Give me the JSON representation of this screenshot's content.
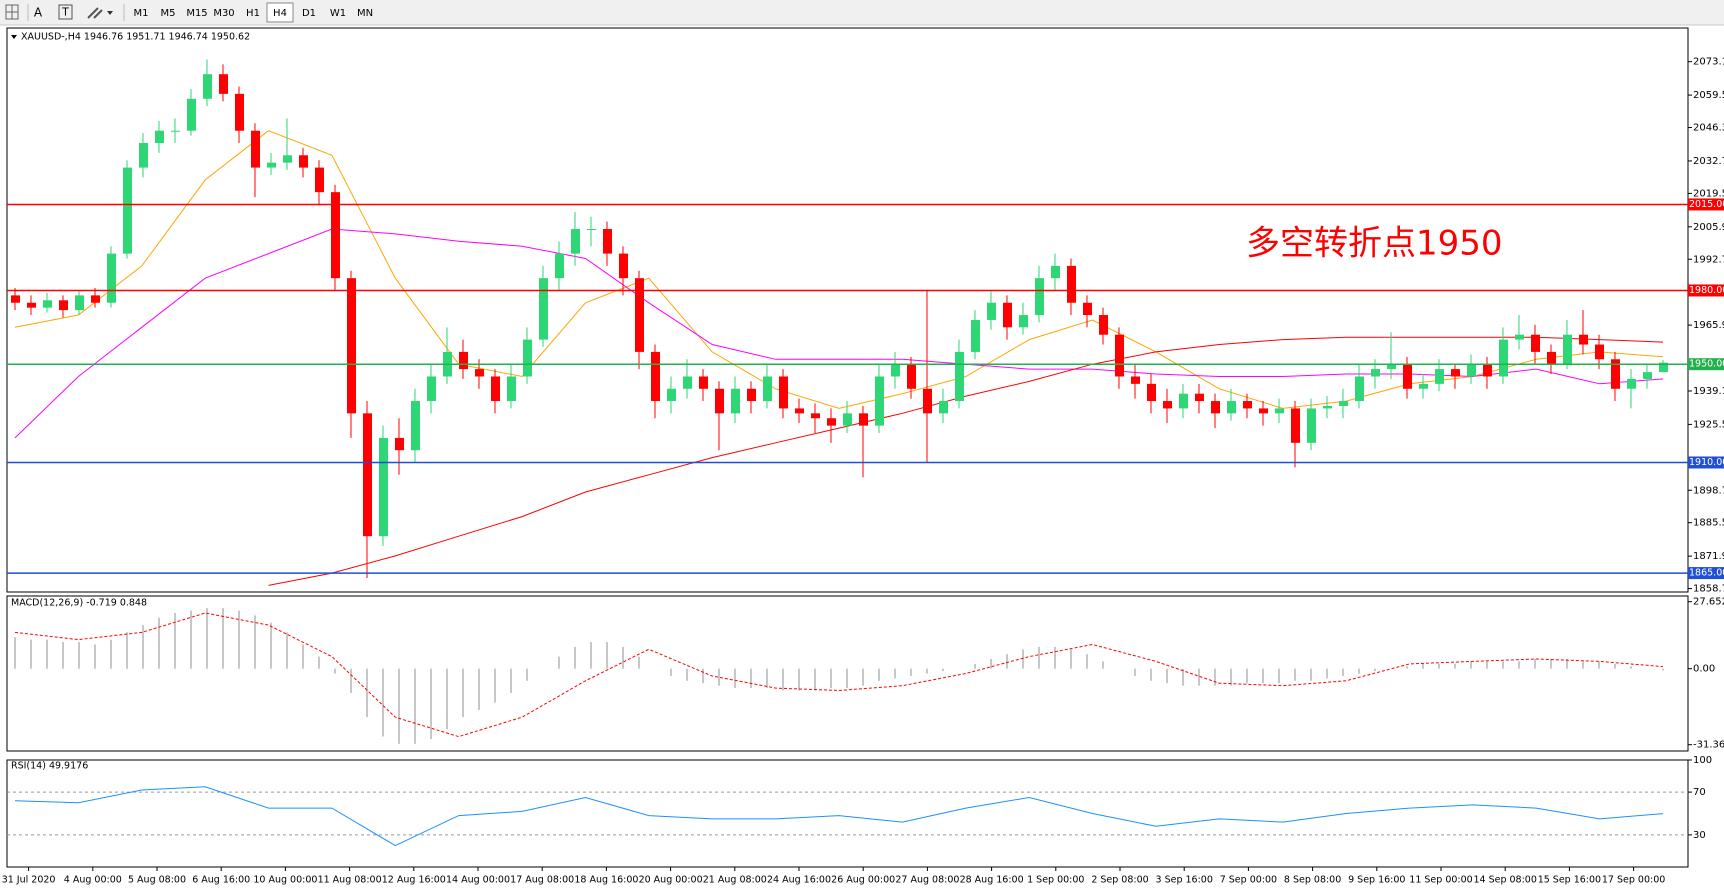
{
  "toolbar": {
    "tools": [
      "A",
      "T"
    ],
    "timeframes": [
      "M1",
      "M5",
      "M15",
      "M30",
      "H1",
      "H4",
      "D1",
      "W1",
      "MN"
    ],
    "active": 5
  },
  "chart_data": [
    {
      "type": "candlestick",
      "title": "XAUUSD-,H4  1946.76 1951.71 1946.74 1950.62",
      "up_color": "#2fd675",
      "down_color": "#ff0000",
      "ohlc": [
        [
          1978,
          1981,
          1972,
          1975
        ],
        [
          1975,
          1978,
          1970,
          1973
        ],
        [
          1973,
          1979,
          1971,
          1976
        ],
        [
          1976,
          1978,
          1969,
          1972
        ],
        [
          1972,
          1980,
          1970,
          1978
        ],
        [
          1978,
          1981,
          1973,
          1975
        ],
        [
          1975,
          1998,
          1973,
          1995
        ],
        [
          1995,
          2033,
          1993,
          2030
        ],
        [
          2030,
          2044,
          2026,
          2040
        ],
        [
          2040,
          2049,
          2036,
          2045
        ],
        [
          2045,
          2050,
          2040,
          2045
        ],
        [
          2045,
          2062,
          2043,
          2058
        ],
        [
          2058,
          2074,
          2055,
          2068
        ],
        [
          2068,
          2072,
          2057,
          2060
        ],
        [
          2060,
          2063,
          2040,
          2045
        ],
        [
          2045,
          2048,
          2018,
          2030
        ],
        [
          2030,
          2036,
          2027,
          2032
        ],
        [
          2032,
          2050,
          2029,
          2035
        ],
        [
          2035,
          2038,
          2026,
          2030
        ],
        [
          2030,
          2033,
          2015,
          2020
        ],
        [
          2020,
          2023,
          1980,
          1985
        ],
        [
          1985,
          1988,
          1920,
          1930
        ],
        [
          1930,
          1935,
          1863,
          1880
        ],
        [
          1880,
          1925,
          1876,
          1920
        ],
        [
          1920,
          1928,
          1905,
          1915
        ],
        [
          1915,
          1940,
          1910,
          1935
        ],
        [
          1935,
          1950,
          1930,
          1945
        ],
        [
          1945,
          1965,
          1942,
          1955
        ],
        [
          1955,
          1960,
          1944,
          1948
        ],
        [
          1948,
          1952,
          1940,
          1945
        ],
        [
          1945,
          1948,
          1930,
          1935
        ],
        [
          1935,
          1950,
          1932,
          1945
        ],
        [
          1945,
          1965,
          1942,
          1960
        ],
        [
          1960,
          1990,
          1957,
          1985
        ],
        [
          1985,
          2000,
          1980,
          1995
        ],
        [
          1995,
          2012,
          1990,
          2005
        ],
        [
          2005,
          2010,
          1998,
          2005
        ],
        [
          2005,
          2008,
          1990,
          1995
        ],
        [
          1995,
          1998,
          1978,
          1985
        ],
        [
          1985,
          1988,
          1948,
          1955
        ],
        [
          1955,
          1958,
          1928,
          1935
        ],
        [
          1935,
          1945,
          1930,
          1940
        ],
        [
          1940,
          1952,
          1936,
          1945
        ],
        [
          1945,
          1948,
          1935,
          1940
        ],
        [
          1940,
          1943,
          1915,
          1930
        ],
        [
          1930,
          1945,
          1926,
          1940
        ],
        [
          1940,
          1943,
          1930,
          1935
        ],
        [
          1935,
          1950,
          1932,
          1945
        ],
        [
          1945,
          1948,
          1928,
          1932
        ],
        [
          1932,
          1936,
          1926,
          1930
        ],
        [
          1930,
          1934,
          1922,
          1928
        ],
        [
          1928,
          1932,
          1918,
          1925
        ],
        [
          1925,
          1935,
          1922,
          1930
        ],
        [
          1930,
          1933,
          1904,
          1925
        ],
        [
          1925,
          1950,
          1922,
          1945
        ],
        [
          1945,
          1955,
          1940,
          1950
        ],
        [
          1950,
          1953,
          1936,
          1940
        ],
        [
          1940,
          1980,
          1910,
          1930
        ],
        [
          1930,
          1940,
          1926,
          1935
        ],
        [
          1935,
          1960,
          1932,
          1955
        ],
        [
          1955,
          1972,
          1952,
          1968
        ],
        [
          1968,
          1980,
          1964,
          1975
        ],
        [
          1975,
          1978,
          1960,
          1965
        ],
        [
          1965,
          1975,
          1962,
          1970
        ],
        [
          1970,
          1990,
          1967,
          1985
        ],
        [
          1985,
          1995,
          1980,
          1990
        ],
        [
          1990,
          1993,
          1970,
          1975
        ],
        [
          1975,
          1978,
          1965,
          1970
        ],
        [
          1970,
          1973,
          1958,
          1962
        ],
        [
          1962,
          1965,
          1940,
          1945
        ],
        [
          1945,
          1950,
          1936,
          1942
        ],
        [
          1942,
          1946,
          1930,
          1935
        ],
        [
          1935,
          1940,
          1926,
          1932
        ],
        [
          1932,
          1942,
          1928,
          1938
        ],
        [
          1938,
          1942,
          1930,
          1935
        ],
        [
          1935,
          1938,
          1924,
          1930
        ],
        [
          1930,
          1940,
          1927,
          1935
        ],
        [
          1935,
          1938,
          1928,
          1932
        ],
        [
          1932,
          1935,
          1925,
          1930
        ],
        [
          1930,
          1936,
          1926,
          1932
        ],
        [
          1932,
          1935,
          1908,
          1918
        ],
        [
          1918,
          1936,
          1915,
          1932
        ],
        [
          1932,
          1937,
          1928,
          1933
        ],
        [
          1933,
          1940,
          1928,
          1935
        ],
        [
          1935,
          1950,
          1932,
          1945
        ],
        [
          1945,
          1952,
          1940,
          1948
        ],
        [
          1948,
          1963,
          1944,
          1950
        ],
        [
          1950,
          1953,
          1936,
          1940
        ],
        [
          1940,
          1946,
          1936,
          1942
        ],
        [
          1942,
          1952,
          1939,
          1948
        ],
        [
          1948,
          1950,
          1940,
          1945
        ],
        [
          1945,
          1954,
          1942,
          1950
        ],
        [
          1950,
          1953,
          1940,
          1945
        ],
        [
          1945,
          1965,
          1942,
          1960
        ],
        [
          1960,
          1970,
          1956,
          1962
        ],
        [
          1962,
          1966,
          1950,
          1955
        ],
        [
          1955,
          1958,
          1946,
          1950
        ],
        [
          1950,
          1968,
          1948,
          1962
        ],
        [
          1962,
          1972,
          1954,
          1958
        ],
        [
          1958,
          1962,
          1948,
          1952
        ],
        [
          1952,
          1955,
          1935,
          1940
        ],
        [
          1940,
          1948,
          1932,
          1944
        ],
        [
          1944,
          1950,
          1940,
          1946.76
        ],
        [
          1946.76,
          1951.71,
          1946.74,
          1950.62
        ]
      ],
      "lines": [
        {
          "color": "#ffa500",
          "values": [
            1965,
            1970,
            1990,
            2025,
            2045,
            2035,
            1985,
            1950,
            1945,
            1975,
            1985,
            1955,
            1940,
            1932,
            1938,
            1945,
            1960,
            1968,
            1955,
            1940,
            1932,
            1935,
            1942,
            1945,
            1952,
            1955,
            1953
          ]
        },
        {
          "color": "#ff00ff",
          "values": [
            1920,
            1945,
            1965,
            1985,
            1995,
            2005,
            2003,
            2000,
            1998,
            1993,
            1975,
            1958,
            1952,
            1952,
            1952,
            1950,
            1948,
            1948,
            1946,
            1945,
            1945,
            1946,
            1946,
            1945,
            1948,
            1942,
            1944
          ]
        },
        {
          "color": "#ff0000",
          "values": [
            null,
            null,
            null,
            null,
            1860,
            1865,
            1872,
            1880,
            1888,
            1898,
            1905,
            1912,
            1918,
            1924,
            1930,
            1937,
            1943,
            1950,
            1955,
            1958,
            1960,
            1961,
            1961,
            1961,
            1961,
            1960,
            1959
          ]
        }
      ],
      "levels": [
        {
          "value": 2015,
          "label": "2015.00",
          "color": "#ff0000"
        },
        {
          "value": 1980,
          "label": "1980.00",
          "color": "#ff0000"
        },
        {
          "value": 1950,
          "label": "1950.00",
          "color": "#22b14c"
        },
        {
          "value": 1910,
          "label": "1910.00",
          "color": "#1f4fd6"
        },
        {
          "value": 1865,
          "label": "1865.00",
          "color": "#1f4fd6"
        }
      ],
      "annotation": "多空转折点1950",
      "annotation_color": "#ff0000",
      "ylim": [
        1857.3,
        2086.8
      ],
      "yticks": [
        {
          "value": 2073.1,
          "label": "2073.10"
        },
        {
          "value": 2059.5,
          "label": "2059.50"
        },
        {
          "value": 2046.3,
          "label": "2046.30"
        },
        {
          "value": 2032.7,
          "label": "2032.70"
        },
        {
          "value": 2019.5,
          "label": "2019.50"
        },
        {
          "value": 2005.9,
          "label": "2005.90"
        },
        {
          "value": 1992.7,
          "label": "1992.70"
        },
        {
          "value": 1965.9,
          "label": "1965.90"
        },
        {
          "value": 1939.1,
          "label": "1939.10"
        },
        {
          "value": 1925.5,
          "label": "1925.50"
        },
        {
          "value": 1898.7,
          "label": "1898.70"
        },
        {
          "value": 1885.5,
          "label": "1885.50"
        },
        {
          "value": 1871.9,
          "label": "1871.90"
        },
        {
          "value": 1858.7,
          "label": "1858.70"
        }
      ],
      "time_labels": [
        "31 Jul 2020",
        "4 Aug 00:00",
        "5 Aug 08:00",
        "6 Aug 16:00",
        "10 Aug 00:00",
        "11 Aug 08:00",
        "12 Aug 16:00",
        "14 Aug 00:00",
        "17 Aug 08:00",
        "18 Aug 16:00",
        "20 Aug 00:00",
        "21 Aug 08:00",
        "24 Aug 16:00",
        "26 Aug 00:00",
        "27 Aug 08:00",
        "28 Aug 16:00",
        "1 Sep 00:00",
        "2 Sep 08:00",
        "3 Sep 16:00",
        "7 Sep 00:00",
        "8 Sep 08:00",
        "9 Sep 16:00",
        "11 Sep 00:00",
        "14 Sep 08:00",
        "15 Sep 16:00",
        "17 Sep 00:00"
      ]
    },
    {
      "type": "macd",
      "title": "MACD(12,26,9) -0.719 0.848",
      "color": "#b4b4b4",
      "values": [
        13,
        12,
        12,
        11,
        11,
        10,
        12,
        15,
        18,
        21,
        23,
        24,
        25,
        25,
        24,
        22,
        19,
        15,
        10,
        5,
        -2,
        -10,
        -20,
        -28,
        -31,
        -31,
        -29,
        -25,
        -20,
        -17,
        -14,
        -10,
        -5,
        0,
        5,
        9,
        11,
        11,
        9,
        5,
        0,
        -3,
        -5,
        -6,
        -7,
        -8,
        -8,
        -8,
        -9,
        -9,
        -9,
        -8,
        -8,
        -7,
        -5,
        -4,
        -3,
        -2,
        -1,
        0,
        2,
        4,
        6,
        8,
        9,
        9,
        8,
        6,
        3,
        0,
        -3,
        -5,
        -6,
        -7,
        -7,
        -7,
        -7,
        -6,
        -6,
        -6,
        -5,
        -5,
        -4,
        -3,
        -2,
        -1,
        0,
        1,
        2,
        2,
        2,
        3,
        3,
        3,
        3,
        4,
        4,
        4,
        3,
        3,
        2,
        1,
        0,
        -0.719
      ],
      "signal": {
        "color": "#ff0000",
        "values": [
          15,
          12,
          15,
          23,
          18,
          5,
          -20,
          -28,
          -20,
          -5,
          8,
          -3,
          -8,
          -9,
          -7,
          -2,
          5,
          10,
          3,
          -6,
          -7,
          -5,
          2,
          3,
          4,
          3,
          0.848
        ]
      },
      "ylim": [
        -33.96,
        30.0
      ],
      "yticks": [
        27.652,
        {
          "value": 0,
          "label": "0.00"
        },
        -31.361
      ]
    },
    {
      "type": "rsi",
      "title": "RSI(14) 49.9176",
      "color": "#1e90ff",
      "grid": true,
      "values": [
        62,
        60,
        72,
        75,
        55,
        55,
        20,
        48,
        52,
        65,
        48,
        45,
        45,
        48,
        42,
        55,
        65,
        50,
        38,
        45,
        42,
        50,
        55,
        58,
        55,
        45,
        49.9176
      ],
      "ylim": [
        0,
        100
      ],
      "yticks": [
        100,
        70,
        30
      ]
    }
  ]
}
